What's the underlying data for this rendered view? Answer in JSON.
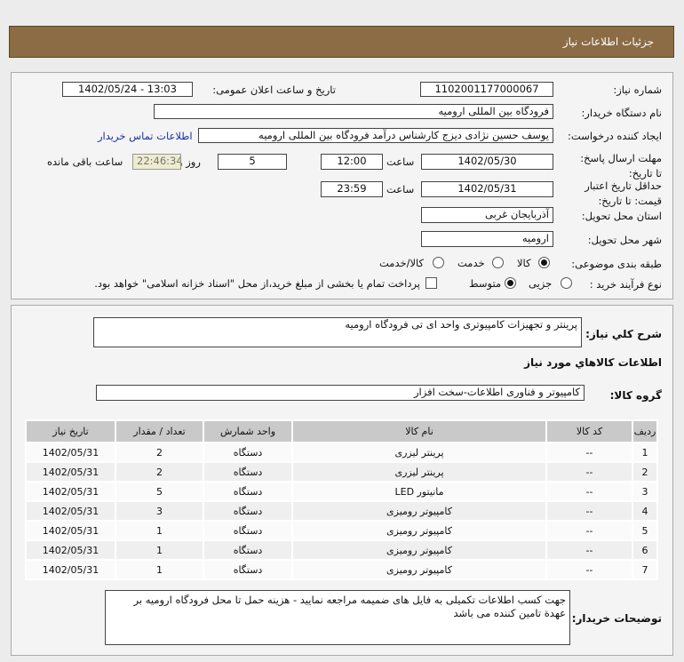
{
  "header": {
    "title": "جزئیات اطلاعات نیاز"
  },
  "form": {
    "need_number_label": "شماره نیاز:",
    "need_number": "1102001177000067",
    "announce_label": "تاریخ و ساعت اعلان عمومی:",
    "announce_value": "1402/05/24 - 13:03",
    "buyer_label": "نام دستگاه خریدار:",
    "buyer": "فرودگاه بین المللی ارومیه",
    "creator_label": "ایجاد کننده درخواست:",
    "creator": "یوسف حسین نژادی دیزج کارشناس درآمد فرودگاه بین المللی ارومیه",
    "contact_link": "اطلاعات تماس خریدار",
    "deadline_label": "مهلت ارسال پاسخ: تا تاریخ:",
    "deadline_date": "1402/05/30",
    "time_label": "ساعت",
    "deadline_time": "12:00",
    "days": "5",
    "days_label": "روز و",
    "remaining": "22:46:34",
    "remaining_label": "ساعت باقی مانده",
    "validity_label": "حداقل تاریخ اعتبار قیمت: تا تاریخ:",
    "validity_date": "1402/05/31",
    "validity_time": "23:59",
    "province_label": "استان محل تحویل:",
    "province": "آذربایجان غربی",
    "city_label": "شهر محل تحویل:",
    "city": "ارومیه",
    "category_label": "طبقه بندی موضوعی:",
    "category_options": [
      "کالا",
      "خدمت",
      "کالا/خدمت"
    ],
    "category_selected": "کالا",
    "process_label": "نوع فرآیند خرید :",
    "process_options": [
      "جزیی",
      "متوسط"
    ],
    "process_selected": "متوسط",
    "treasury_text": "پرداخت تمام یا بخشی از مبلغ خرید،از محل \"اسناد خزانه اسلامی\" خواهد بود.",
    "treasury_checked": false
  },
  "details": {
    "desc_label": "شرح کلي نياز:",
    "desc": "پرینتر و تجهیزات کامپیوتری واحد ای تی فرودگاه ارومیه",
    "goods_title": "اطلاعات کالاهاي مورد نياز",
    "group_label": "گروه کالا:",
    "group": "کامپیوتر و فناوری اطلاعات-سخت افزار",
    "table": {
      "headers": [
        "ردیف",
        "کد کالا",
        "نام کالا",
        "واحد شمارش",
        "تعداد / مقدار",
        "تاریخ نیاز"
      ],
      "rows": [
        [
          "1",
          "--",
          "پرینتر لیزری",
          "دستگاه",
          "2",
          "1402/05/31"
        ],
        [
          "2",
          "--",
          "پرینتر لیزری",
          "دستگاه",
          "2",
          "1402/05/31"
        ],
        [
          "3",
          "--",
          "مانیتور LED",
          "دستگاه",
          "5",
          "1402/05/31"
        ],
        [
          "4",
          "--",
          "کامپیوتر رومیزی",
          "دستگاه",
          "3",
          "1402/05/31"
        ],
        [
          "5",
          "--",
          "کامپیوتر رومیزی",
          "دستگاه",
          "1",
          "1402/05/31"
        ],
        [
          "6",
          "--",
          "کامپیوتر رومیزی",
          "دستگاه",
          "1",
          "1402/05/31"
        ],
        [
          "7",
          "--",
          "کامپیوتر رومیزی",
          "دستگاه",
          "1",
          "1402/05/31"
        ]
      ]
    },
    "notes_label": "توضیحات خریدار:",
    "notes": "جهت کسب اطلاعات تکمیلی به فایل های ضمیمه مراجعه نمایید - هزینه حمل تا محل فرودگاه ارومیه بر عهدة تامین کننده می باشد"
  }
}
